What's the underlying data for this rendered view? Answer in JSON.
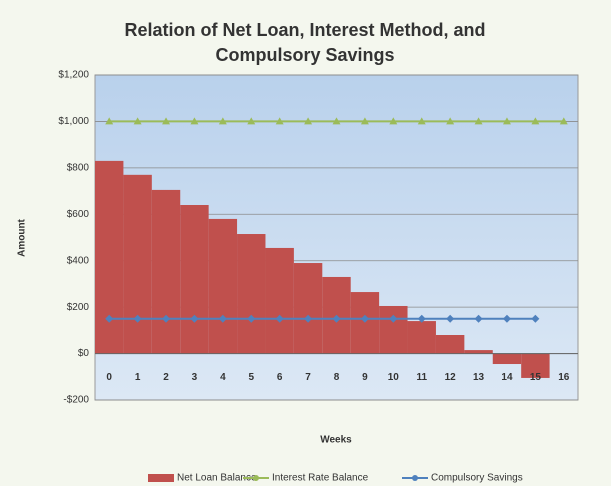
{
  "chart_data": {
    "type": "bar",
    "title": "Relation of Net Loan, Interest Method, and Compulsory Savings",
    "x_label": "Weeks",
    "y_label": "Amount",
    "categories": [
      "0",
      "1",
      "2",
      "3",
      "4",
      "5",
      "6",
      "7",
      "8",
      "9",
      "10",
      "11",
      "12",
      "13",
      "14",
      "15",
      "16"
    ],
    "series": [
      {
        "name": "Net Loan Balance",
        "type": "bar",
        "color": "#c0504d",
        "values": [
          830,
          770,
          705,
          640,
          580,
          515,
          455,
          390,
          330,
          265,
          205,
          140,
          80,
          15,
          -45,
          -105,
          null
        ]
      },
      {
        "name": "Interest Rate Balance",
        "type": "line",
        "color": "#9bbb59",
        "values": [
          1000,
          1000,
          1000,
          1000,
          1000,
          1000,
          1000,
          1000,
          1000,
          1000,
          1000,
          1000,
          1000,
          1000,
          1000,
          1000,
          1000
        ]
      },
      {
        "name": "Compulsory Savings",
        "type": "line",
        "color": "#4f81bd",
        "values": [
          150,
          150,
          150,
          150,
          150,
          150,
          150,
          150,
          150,
          150,
          150,
          150,
          150,
          150,
          150,
          150,
          null
        ]
      }
    ],
    "ylim": [
      -200,
      1200
    ],
    "yticks": [
      {
        "value": -200,
        "label": "-$200"
      },
      {
        "value": 0,
        "label": "$0"
      },
      {
        "value": 200,
        "label": "$200"
      },
      {
        "value": 400,
        "label": "$400"
      },
      {
        "value": 600,
        "label": "$600"
      },
      {
        "value": 800,
        "label": "$800"
      },
      {
        "value": 1000,
        "label": "$1,000"
      },
      {
        "value": 1200,
        "label": "$1,200"
      }
    ],
    "grid": true
  }
}
